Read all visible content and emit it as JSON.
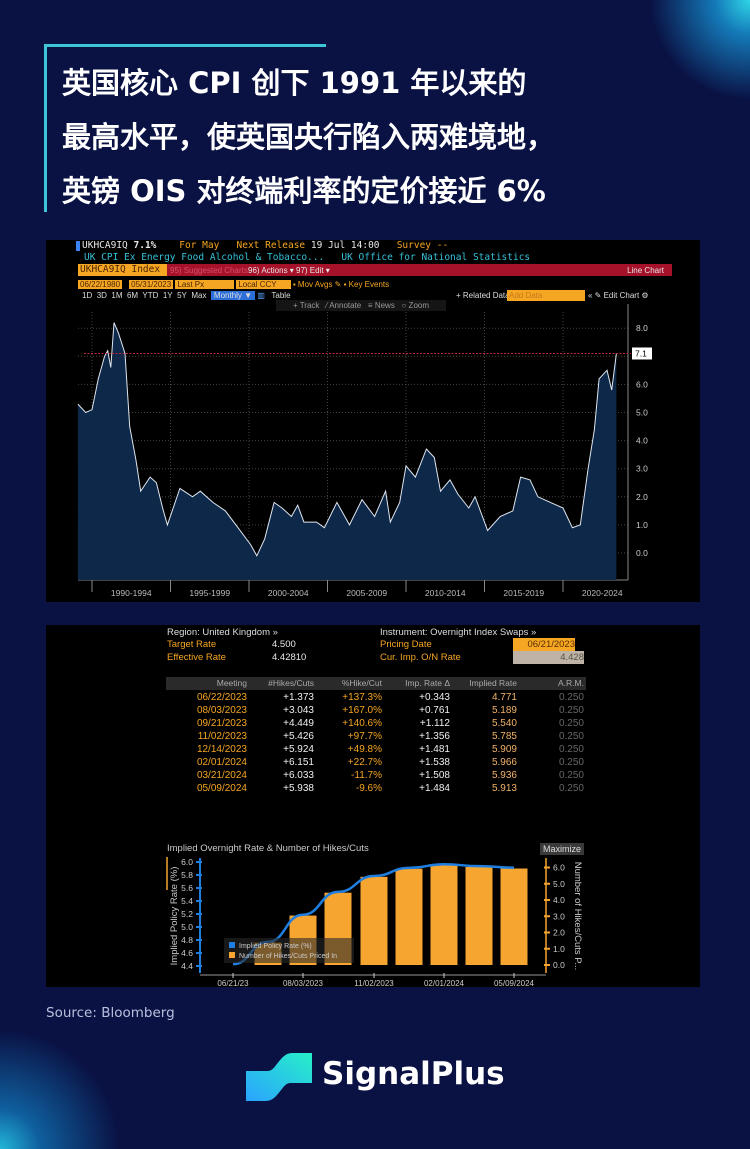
{
  "title_lines": [
    "英国核心 CPI 创下 1991 年以来的",
    "最高水平，使英国央行陷入两难境地，",
    "英镑 OIS 对终端利率的定价接近 6%"
  ],
  "terminal1": {
    "ticker": "UKHCA9IQ",
    "value": "7.1%",
    "period": "For May",
    "next_release_label": "Next Release",
    "next_release": "19 Jul 14:00",
    "survey_label": "Survey",
    "survey": "--",
    "description": "UK CPI Ex Energy Food Alcohol & Tobacco...",
    "source": "UK Office for National Statistics",
    "security": "UKHCA9IQ Index",
    "suggested": "95) Suggested Charts",
    "actions": "96) Actions ▾",
    "edit": "97) Edit ▾",
    "chart_type": "Line Chart",
    "start_date": "06/22/1980",
    "end_date": "05/31/2023",
    "price_field": "Last Px",
    "currency": "Local CCY",
    "mov_avgs": "Mov Avgs",
    "key_events": "Key Events",
    "periods": [
      "1D",
      "3D",
      "1M",
      "6M",
      "YTD",
      "1Y",
      "5Y",
      "Max"
    ],
    "frequency": "Monthly ▼",
    "table": "Table",
    "related": "+ Related Data",
    "add_data": "Add Data",
    "edit_chart": "« ✎ Edit Chart ⚙",
    "tools": [
      "+ Track",
      "⁄ Annotate",
      "≡ News",
      "○ Zoom"
    ],
    "colors": {
      "fill": "#0d2848",
      "line": "#dfe6f0",
      "ref": "#c0283a"
    }
  },
  "terminal2": {
    "region": "Region: United Kingdom »",
    "instrument": "Instrument: Overnight Index Swaps »",
    "target_label": "Target Rate",
    "target": "4.500",
    "effective_label": "Effective Rate",
    "effective": "4.42810",
    "pricing_label": "Pricing Date",
    "pricing": "06/21/2023",
    "cur_label": "Cur. Imp. O/N Rate",
    "cur": "4.428",
    "columns": [
      "Meeting",
      "#Hikes/Cuts",
      "%Hike/Cut",
      "Imp. Rate Δ",
      "Implied Rate",
      "A.R.M."
    ],
    "rows": [
      [
        "06/22/2023",
        "+1.373",
        "+137.3%",
        "+0.343",
        "4.771",
        "0.250"
      ],
      [
        "08/03/2023",
        "+3.043",
        "+167.0%",
        "+0.761",
        "5.189",
        "0.250"
      ],
      [
        "09/21/2023",
        "+4.449",
        "+140.6%",
        "+1.112",
        "5.540",
        "0.250"
      ],
      [
        "11/02/2023",
        "+5.426",
        "+97.7%",
        "+1.356",
        "5.785",
        "0.250"
      ],
      [
        "12/14/2023",
        "+5.924",
        "+49.8%",
        "+1.481",
        "5.909",
        "0.250"
      ],
      [
        "02/01/2024",
        "+6.151",
        "+22.7%",
        "+1.538",
        "5.966",
        "0.250"
      ],
      [
        "03/21/2024",
        "+6.033",
        "-11.7%",
        "+1.508",
        "5.936",
        "0.250"
      ],
      [
        "05/09/2024",
        "+5.938",
        "-9.6%",
        "+1.484",
        "5.913",
        "0.250"
      ]
    ],
    "maximize": "Maximize"
  },
  "chart_data": [
    {
      "type": "area",
      "title": "",
      "ylim": [
        -1,
        8.6
      ],
      "yticks": [
        0.0,
        1.0,
        2.0,
        3.0,
        4.0,
        5.0,
        6.0,
        7.0,
        8.0
      ],
      "ytick_labels": [
        "0.0",
        "1.0",
        "2.0",
        "3.0",
        "4.0",
        "5.0",
        "6.0",
        "7.0",
        "8.0"
      ],
      "xtick_labels": [
        "1990-1994",
        "1995-1999",
        "2000-2004",
        "2005-2009",
        "2010-2014",
        "2015-2019",
        "2020-2024"
      ],
      "grid": true,
      "last_value_label": "7.1",
      "reference_line": 7.1,
      "x": [
        1989.1,
        1989.6,
        1990.0,
        1990.4,
        1990.8,
        1991.0,
        1991.2,
        1991.4,
        1991.7,
        1992.1,
        1992.4,
        1992.8,
        1993.1,
        1993.7,
        1994.1,
        1994.5,
        1994.8,
        1995.6,
        1996.4,
        1996.9,
        1997.7,
        1998.5,
        1999.3,
        2000.1,
        2000.5,
        2001.0,
        2001.6,
        2002.1,
        2002.7,
        2003.1,
        2003.5,
        2004.3,
        2004.8,
        2005.6,
        2006.4,
        2007.2,
        2008.0,
        2008.7,
        2009.0,
        2009.6,
        2010.0,
        2010.6,
        2011.3,
        2011.8,
        2012.2,
        2012.8,
        2013.3,
        2014.0,
        2014.4,
        2015.2,
        2016.0,
        2016.8,
        2017.3,
        2017.9,
        2018.4,
        2019.2,
        2020.0,
        2020.6,
        2021.1,
        2021.6,
        2022.0,
        2022.3,
        2022.8,
        2023.1,
        2023.4
      ],
      "y": [
        5.3,
        5.0,
        5.1,
        6.2,
        7.0,
        7.2,
        6.6,
        8.2,
        7.8,
        7.1,
        4.5,
        3.3,
        2.2,
        2.7,
        2.5,
        1.6,
        1.0,
        2.3,
        2.0,
        2.2,
        1.8,
        1.5,
        0.9,
        0.3,
        -0.1,
        0.5,
        1.8,
        1.6,
        1.3,
        1.7,
        1.1,
        1.1,
        0.9,
        1.8,
        1.0,
        1.9,
        1.3,
        2.2,
        1.1,
        1.8,
        3.1,
        2.7,
        3.7,
        3.4,
        2.2,
        2.6,
        2.1,
        1.6,
        2.0,
        0.8,
        1.3,
        1.5,
        2.7,
        2.6,
        2.0,
        1.8,
        1.6,
        0.9,
        1.0,
        3.0,
        4.4,
        6.2,
        6.5,
        5.8,
        7.1
      ]
    },
    {
      "type": "bar+line",
      "title": "Implied Overnight Rate & Number of Hikes/Cuts",
      "ylabel": "Implied Policy Rate (%)",
      "y2label": "Number of Hikes/Cuts P...",
      "ylim": [
        4.4,
        6.0
      ],
      "yticks": [
        "4.4",
        "4.6",
        "4.8",
        "5.0",
        "5.2",
        "5.4",
        "5.6",
        "5.8",
        "6.0"
      ],
      "y2lim": [
        0,
        6
      ],
      "y2ticks": [
        "0.0",
        "1.0",
        "2.0",
        "3.0",
        "4.0",
        "5.0",
        "6.0"
      ],
      "xtick_labels": [
        "06/21/23",
        "08/03/2023",
        "11/02/2023",
        "02/01/2024",
        "05/09/2024"
      ],
      "categories": [
        "06/22/2023",
        "08/03/2023",
        "09/21/2023",
        "11/02/2023",
        "12/14/2023",
        "02/01/2024",
        "03/21/2024",
        "05/09/2024"
      ],
      "series": [
        {
          "name": "Implied Policy Rate (%)",
          "start": 4.428,
          "values": [
            4.771,
            5.189,
            5.54,
            5.785,
            5.909,
            5.966,
            5.936,
            5.913
          ],
          "color": "#1f7fe0"
        },
        {
          "name": "Number of Hikes/Cuts Priced In",
          "values": [
            1.373,
            3.043,
            4.449,
            5.426,
            5.924,
            6.151,
            6.033,
            5.938
          ],
          "color": "#f7a531"
        }
      ],
      "legend": "bottom-left"
    }
  ],
  "source": "Source: Bloomberg",
  "brand": "SignalPlus"
}
